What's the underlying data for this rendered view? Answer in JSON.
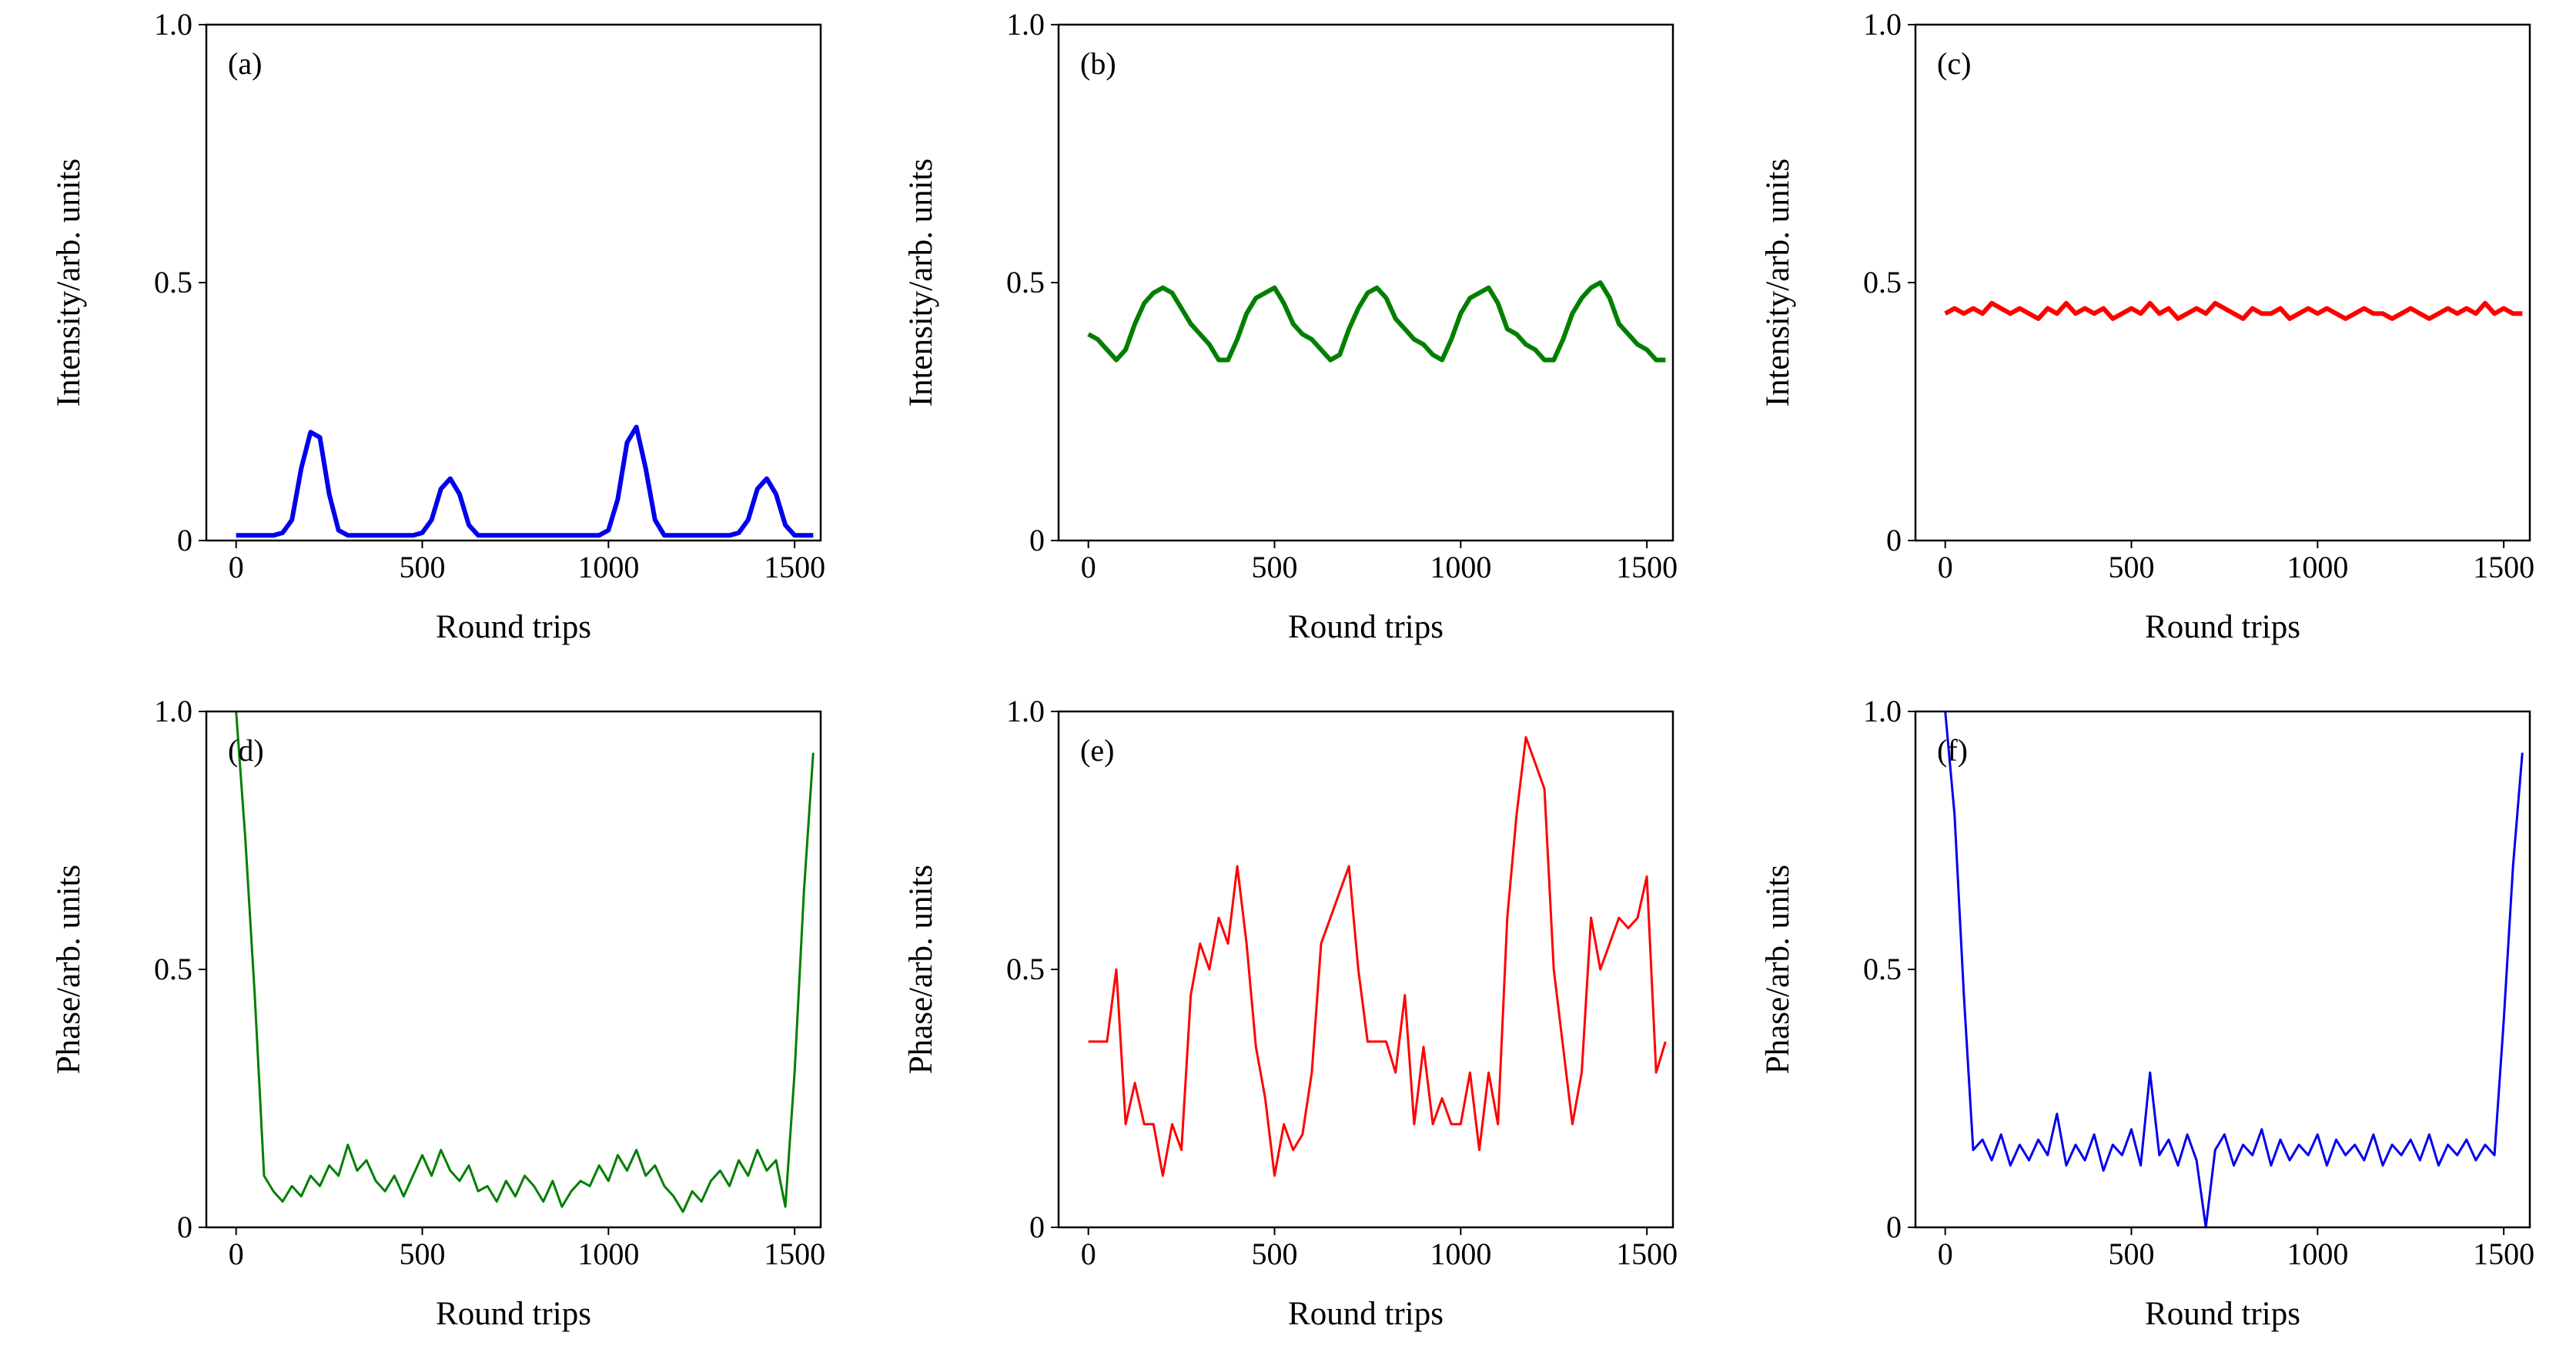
{
  "chart_data": [
    {
      "type": "line",
      "annotation": "(a)",
      "xlabel": "Round trips",
      "ylabel": "Intensity/arb. units",
      "x": [
        0,
        25,
        50,
        75,
        100,
        125,
        150,
        175,
        200,
        225,
        250,
        275,
        300,
        325,
        350,
        375,
        400,
        425,
        450,
        475,
        500,
        525,
        550,
        575,
        600,
        625,
        650,
        675,
        700,
        725,
        750,
        775,
        800,
        825,
        850,
        875,
        900,
        925,
        950,
        975,
        1000,
        1025,
        1050,
        1075,
        1100,
        1125,
        1150,
        1175,
        1200,
        1225,
        1250,
        1275,
        1300,
        1325,
        1350,
        1375,
        1400,
        1425,
        1450,
        1475,
        1500,
        1525,
        1550
      ],
      "series": [
        {
          "color": "#0000ee",
          "values": [
            0.01,
            0.01,
            0.01,
            0.01,
            0.01,
            0.015,
            0.04,
            0.14,
            0.21,
            0.2,
            0.09,
            0.02,
            0.01,
            0.01,
            0.01,
            0.01,
            0.01,
            0.01,
            0.01,
            0.01,
            0.015,
            0.04,
            0.1,
            0.12,
            0.09,
            0.03,
            0.01,
            0.01,
            0.01,
            0.01,
            0.01,
            0.01,
            0.01,
            0.01,
            0.01,
            0.01,
            0.01,
            0.01,
            0.01,
            0.01,
            0.02,
            0.08,
            0.19,
            0.22,
            0.14,
            0.04,
            0.01,
            0.01,
            0.01,
            0.01,
            0.01,
            0.01,
            0.01,
            0.01,
            0.015,
            0.04,
            0.1,
            0.12,
            0.09,
            0.03,
            0.01,
            0.01,
            0.01
          ]
        }
      ],
      "xlim": [
        -80,
        1570
      ],
      "ylim": [
        0,
        1
      ],
      "xticks": [
        0,
        500,
        1000,
        1500
      ],
      "yticks": [
        0,
        0.5,
        {
          "value": 1,
          "label": "1.0"
        }
      ]
    },
    {
      "type": "line",
      "annotation": "(b)",
      "xlabel": "Round trips",
      "ylabel": "Intensity/arb. units",
      "x": [
        0,
        25,
        50,
        75,
        100,
        125,
        150,
        175,
        200,
        225,
        250,
        275,
        300,
        325,
        350,
        375,
        400,
        425,
        450,
        475,
        500,
        525,
        550,
        575,
        600,
        625,
        650,
        675,
        700,
        725,
        750,
        775,
        800,
        825,
        850,
        875,
        900,
        925,
        950,
        975,
        1000,
        1025,
        1050,
        1075,
        1100,
        1125,
        1150,
        1175,
        1200,
        1225,
        1250,
        1275,
        1300,
        1325,
        1350,
        1375,
        1400,
        1425,
        1450,
        1475,
        1500,
        1525,
        1550
      ],
      "series": [
        {
          "color": "#007f00",
          "values": [
            0.4,
            0.39,
            0.37,
            0.35,
            0.37,
            0.42,
            0.46,
            0.48,
            0.49,
            0.48,
            0.45,
            0.42,
            0.4,
            0.38,
            0.35,
            0.35,
            0.39,
            0.44,
            0.47,
            0.48,
            0.49,
            0.46,
            0.42,
            0.4,
            0.39,
            0.37,
            0.35,
            0.36,
            0.41,
            0.45,
            0.48,
            0.49,
            0.47,
            0.43,
            0.41,
            0.39,
            0.38,
            0.36,
            0.35,
            0.39,
            0.44,
            0.47,
            0.48,
            0.49,
            0.46,
            0.41,
            0.4,
            0.38,
            0.37,
            0.35,
            0.35,
            0.39,
            0.44,
            0.47,
            0.49,
            0.5,
            0.47,
            0.42,
            0.4,
            0.38,
            0.37,
            0.35,
            0.35
          ]
        }
      ],
      "xlim": [
        -80,
        1570
      ],
      "ylim": [
        0,
        1
      ],
      "xticks": [
        0,
        500,
        1000,
        1500
      ],
      "yticks": [
        0,
        0.5,
        {
          "value": 1,
          "label": "1.0"
        }
      ]
    },
    {
      "type": "line",
      "annotation": "(c)",
      "xlabel": "Round trips",
      "ylabel": "Intensity/arb. units",
      "x": [
        0,
        25,
        50,
        75,
        100,
        125,
        150,
        175,
        200,
        225,
        250,
        275,
        300,
        325,
        350,
        375,
        400,
        425,
        450,
        475,
        500,
        525,
        550,
        575,
        600,
        625,
        650,
        675,
        700,
        725,
        750,
        775,
        800,
        825,
        850,
        875,
        900,
        925,
        950,
        975,
        1000,
        1025,
        1050,
        1075,
        1100,
        1125,
        1150,
        1175,
        1200,
        1225,
        1250,
        1275,
        1300,
        1325,
        1350,
        1375,
        1400,
        1425,
        1450,
        1475,
        1500,
        1525,
        1550
      ],
      "series": [
        {
          "color": "#ff0000",
          "values": [
            0.44,
            0.45,
            0.44,
            0.45,
            0.44,
            0.46,
            0.45,
            0.44,
            0.45,
            0.44,
            0.43,
            0.45,
            0.44,
            0.46,
            0.44,
            0.45,
            0.44,
            0.45,
            0.43,
            0.44,
            0.45,
            0.44,
            0.46,
            0.44,
            0.45,
            0.43,
            0.44,
            0.45,
            0.44,
            0.46,
            0.45,
            0.44,
            0.43,
            0.45,
            0.44,
            0.44,
            0.45,
            0.43,
            0.44,
            0.45,
            0.44,
            0.45,
            0.44,
            0.43,
            0.44,
            0.45,
            0.44,
            0.44,
            0.43,
            0.44,
            0.45,
            0.44,
            0.43,
            0.44,
            0.45,
            0.44,
            0.45,
            0.44,
            0.46,
            0.44,
            0.45,
            0.44,
            0.44
          ]
        }
      ],
      "xlim": [
        -80,
        1570
      ],
      "ylim": [
        0,
        1
      ],
      "xticks": [
        0,
        500,
        1000,
        1500
      ],
      "yticks": [
        0,
        0.5,
        {
          "value": 1,
          "label": "1.0"
        }
      ]
    },
    {
      "type": "line",
      "annotation": "(d)",
      "xlabel": "Round trips",
      "ylabel": "Phase/arb. units",
      "x": [
        0,
        25,
        50,
        75,
        100,
        125,
        150,
        175,
        200,
        225,
        250,
        275,
        300,
        325,
        350,
        375,
        400,
        425,
        450,
        475,
        500,
        525,
        550,
        575,
        600,
        625,
        650,
        675,
        700,
        725,
        750,
        775,
        800,
        825,
        850,
        875,
        900,
        925,
        950,
        975,
        1000,
        1025,
        1050,
        1075,
        1100,
        1125,
        1150,
        1175,
        1200,
        1225,
        1250,
        1275,
        1300,
        1325,
        1350,
        1375,
        1400,
        1425,
        1450,
        1475,
        1500,
        1525,
        1550
      ],
      "series": [
        {
          "color": "#007f00",
          "values": [
            1.0,
            0.75,
            0.45,
            0.1,
            0.07,
            0.05,
            0.08,
            0.06,
            0.1,
            0.08,
            0.12,
            0.1,
            0.16,
            0.11,
            0.13,
            0.09,
            0.07,
            0.1,
            0.06,
            0.1,
            0.14,
            0.1,
            0.15,
            0.11,
            0.09,
            0.12,
            0.07,
            0.08,
            0.05,
            0.09,
            0.06,
            0.1,
            0.08,
            0.05,
            0.09,
            0.04,
            0.07,
            0.09,
            0.08,
            0.12,
            0.09,
            0.14,
            0.11,
            0.15,
            0.1,
            0.12,
            0.08,
            0.06,
            0.03,
            0.07,
            0.05,
            0.09,
            0.11,
            0.08,
            0.13,
            0.1,
            0.15,
            0.11,
            0.13,
            0.04,
            0.3,
            0.65,
            0.92
          ]
        }
      ],
      "xlim": [
        -80,
        1570
      ],
      "ylim": [
        0,
        1
      ],
      "xticks": [
        0,
        500,
        1000,
        1500
      ],
      "yticks": [
        0,
        0.5,
        {
          "value": 1,
          "label": "1.0"
        }
      ]
    },
    {
      "type": "line",
      "annotation": "(e)",
      "xlabel": "Round trips",
      "ylabel": "Phase/arb. units",
      "x": [
        0,
        25,
        50,
        75,
        100,
        125,
        150,
        175,
        200,
        225,
        250,
        275,
        300,
        325,
        350,
        375,
        400,
        425,
        450,
        475,
        500,
        525,
        550,
        575,
        600,
        625,
        650,
        675,
        700,
        725,
        750,
        775,
        800,
        825,
        850,
        875,
        900,
        925,
        950,
        975,
        1000,
        1025,
        1050,
        1075,
        1100,
        1125,
        1150,
        1175,
        1200,
        1225,
        1250,
        1275,
        1300,
        1325,
        1350,
        1375,
        1400,
        1425,
        1450,
        1475,
        1500,
        1525,
        1550
      ],
      "series": [
        {
          "color": "#ff0000",
          "values": [
            0.36,
            0.36,
            0.36,
            0.5,
            0.2,
            0.28,
            0.2,
            0.2,
            0.1,
            0.2,
            0.15,
            0.45,
            0.55,
            0.5,
            0.6,
            0.55,
            0.7,
            0.55,
            0.35,
            0.25,
            0.1,
            0.2,
            0.15,
            0.18,
            0.3,
            0.55,
            0.6,
            0.65,
            0.7,
            0.5,
            0.36,
            0.36,
            0.36,
            0.3,
            0.45,
            0.2,
            0.35,
            0.2,
            0.25,
            0.2,
            0.2,
            0.3,
            0.15,
            0.3,
            0.2,
            0.6,
            0.8,
            0.95,
            0.9,
            0.85,
            0.5,
            0.35,
            0.2,
            0.3,
            0.6,
            0.5,
            0.55,
            0.6,
            0.58,
            0.6,
            0.68,
            0.3,
            0.36
          ]
        }
      ],
      "xlim": [
        -80,
        1570
      ],
      "ylim": [
        0,
        1
      ],
      "xticks": [
        0,
        500,
        1000,
        1500
      ],
      "yticks": [
        0,
        0.5,
        {
          "value": 1,
          "label": "1.0"
        }
      ]
    },
    {
      "type": "line",
      "annotation": "(f)",
      "xlabel": "Round trips",
      "ylabel": "Phase/arb. units",
      "x": [
        0,
        25,
        50,
        75,
        100,
        125,
        150,
        175,
        200,
        225,
        250,
        275,
        300,
        325,
        350,
        375,
        400,
        425,
        450,
        475,
        500,
        525,
        550,
        575,
        600,
        625,
        650,
        675,
        700,
        725,
        750,
        775,
        800,
        825,
        850,
        875,
        900,
        925,
        950,
        975,
        1000,
        1025,
        1050,
        1075,
        1100,
        1125,
        1150,
        1175,
        1200,
        1225,
        1250,
        1275,
        1300,
        1325,
        1350,
        1375,
        1400,
        1425,
        1450,
        1475,
        1500,
        1525,
        1550
      ],
      "series": [
        {
          "color": "#0000ee",
          "values": [
            1.0,
            0.8,
            0.45,
            0.15,
            0.17,
            0.13,
            0.18,
            0.12,
            0.16,
            0.13,
            0.17,
            0.14,
            0.22,
            0.12,
            0.16,
            0.13,
            0.18,
            0.11,
            0.16,
            0.14,
            0.19,
            0.12,
            0.3,
            0.14,
            0.17,
            0.12,
            0.18,
            0.13,
            0,
            0.15,
            0.18,
            0.12,
            0.16,
            0.14,
            0.19,
            0.12,
            0.17,
            0.13,
            0.16,
            0.14,
            0.18,
            0.12,
            0.17,
            0.14,
            0.16,
            0.13,
            0.18,
            0.12,
            0.16,
            0.14,
            0.17,
            0.13,
            0.18,
            0.12,
            0.16,
            0.14,
            0.17,
            0.13,
            0.16,
            0.14,
            0.4,
            0.7,
            0.92
          ]
        }
      ],
      "xlim": [
        -80,
        1570
      ],
      "ylim": [
        0,
        1
      ],
      "xticks": [
        0,
        500,
        1000,
        1500
      ],
      "yticks": [
        0,
        0.5,
        {
          "value": 1,
          "label": "1.0"
        }
      ]
    }
  ]
}
